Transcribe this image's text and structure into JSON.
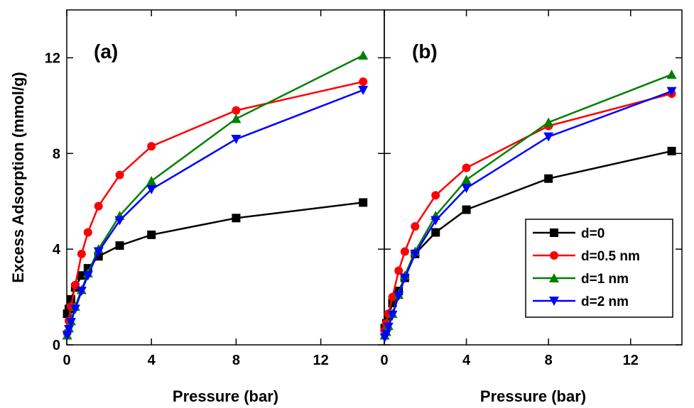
{
  "chart_data": {
    "type": "line",
    "ylabel": "Excess Adsorption (mmol/g)",
    "colors": {
      "d0": "#000000",
      "d05": "#ff0000",
      "d1": "#008000",
      "d2": "#0000ff"
    },
    "markers": {
      "d0": "square",
      "d05": "circle",
      "d1": "triangle-up",
      "d2": "triangle-down"
    },
    "legend": {
      "placement": "lower-right of panel (b)",
      "entries": [
        {
          "key": "d0",
          "label": "d=0"
        },
        {
          "key": "d05",
          "label": "d=0.5 nm"
        },
        {
          "key": "d1",
          "label": "d=1 nm"
        },
        {
          "key": "d2",
          "label": "d=2 nm"
        }
      ]
    },
    "panels": [
      {
        "tag": "(a)",
        "xlabel": "Pressure (bar)",
        "xlim": [
          0,
          15
        ],
        "ylim": [
          0,
          14
        ],
        "xticks": [
          0,
          4,
          8,
          12
        ],
        "yticks": [
          0,
          4,
          8,
          12
        ],
        "xtick_labels": [
          "0",
          "4",
          "8",
          "12"
        ],
        "ytick_labels": [
          "0",
          "4",
          "8",
          "12"
        ],
        "series": [
          {
            "key": "d0",
            "points": [
              [
                0.02,
                1.3
              ],
              [
                0.1,
                1.5
              ],
              [
                0.2,
                1.9
              ],
              [
                0.4,
                2.4
              ],
              [
                0.7,
                2.9
              ],
              [
                1.0,
                3.2
              ],
              [
                1.5,
                3.7
              ],
              [
                2.5,
                4.15
              ],
              [
                4,
                4.6
              ],
              [
                8,
                5.3
              ],
              [
                14,
                5.95
              ]
            ]
          },
          {
            "key": "d05",
            "points": [
              [
                0.02,
                0.5
              ],
              [
                0.1,
                1.0
              ],
              [
                0.2,
                1.6
              ],
              [
                0.4,
                2.5
              ],
              [
                0.7,
                3.8
              ],
              [
                1.0,
                4.7
              ],
              [
                1.5,
                5.8
              ],
              [
                2.5,
                7.1
              ],
              [
                4,
                8.3
              ],
              [
                8,
                9.8
              ],
              [
                14,
                11.0
              ]
            ]
          },
          {
            "key": "d1",
            "points": [
              [
                0.02,
                0.4
              ],
              [
                0.1,
                0.7
              ],
              [
                0.2,
                1.0
              ],
              [
                0.4,
                1.6
              ],
              [
                0.7,
                2.3
              ],
              [
                1.0,
                3.0
              ],
              [
                1.5,
                4.0
              ],
              [
                2.5,
                5.4
              ],
              [
                4,
                6.85
              ],
              [
                8,
                9.45
              ],
              [
                14,
                12.1
              ]
            ]
          },
          {
            "key": "d2",
            "points": [
              [
                0.02,
                0.4
              ],
              [
                0.1,
                0.65
              ],
              [
                0.2,
                0.95
              ],
              [
                0.4,
                1.5
              ],
              [
                0.7,
                2.25
              ],
              [
                1.0,
                2.9
              ],
              [
                1.5,
                3.9
              ],
              [
                2.5,
                5.2
              ],
              [
                4,
                6.5
              ],
              [
                8,
                8.6
              ],
              [
                14,
                10.65
              ]
            ]
          }
        ]
      },
      {
        "tag": "(b)",
        "xlabel": "Pressure (bar)",
        "xlim": [
          0,
          14.5
        ],
        "ylim": [
          0,
          14
        ],
        "xticks": [
          0,
          4,
          8,
          12
        ],
        "yticks": [
          0,
          4,
          8,
          12
        ],
        "xtick_labels": [
          "0",
          "4",
          "8",
          "12"
        ],
        "ytick_labels": [],
        "series": [
          {
            "key": "d0",
            "points": [
              [
                0.02,
                0.7
              ],
              [
                0.1,
                0.9
              ],
              [
                0.2,
                1.2
              ],
              [
                0.4,
                1.75
              ],
              [
                0.7,
                2.25
              ],
              [
                1.0,
                2.8
              ],
              [
                1.5,
                3.8
              ],
              [
                2.5,
                4.7
              ],
              [
                4,
                5.65
              ],
              [
                8,
                6.95
              ],
              [
                14,
                8.1
              ]
            ]
          },
          {
            "key": "d05",
            "points": [
              [
                0.02,
                0.6
              ],
              [
                0.1,
                0.9
              ],
              [
                0.2,
                1.3
              ],
              [
                0.4,
                2.0
              ],
              [
                0.7,
                3.1
              ],
              [
                1.0,
                3.9
              ],
              [
                1.5,
                4.95
              ],
              [
                2.5,
                6.25
              ],
              [
                4,
                7.4
              ],
              [
                8,
                9.15
              ],
              [
                14,
                10.5
              ]
            ]
          },
          {
            "key": "d1",
            "points": [
              [
                0.02,
                0.4
              ],
              [
                0.1,
                0.55
              ],
              [
                0.2,
                0.8
              ],
              [
                0.4,
                1.3
              ],
              [
                0.7,
                2.1
              ],
              [
                1.0,
                2.9
              ],
              [
                1.5,
                3.9
              ],
              [
                2.5,
                5.4
              ],
              [
                4,
                6.9
              ],
              [
                8,
                9.3
              ],
              [
                14,
                11.3
              ]
            ]
          },
          {
            "key": "d2",
            "points": [
              [
                0.02,
                0.3
              ],
              [
                0.1,
                0.45
              ],
              [
                0.2,
                0.75
              ],
              [
                0.4,
                1.25
              ],
              [
                0.7,
                2.05
              ],
              [
                1.0,
                2.8
              ],
              [
                1.5,
                3.8
              ],
              [
                2.5,
                5.2
              ],
              [
                4,
                6.55
              ],
              [
                8,
                8.7
              ],
              [
                14,
                10.6
              ]
            ]
          }
        ]
      }
    ]
  }
}
